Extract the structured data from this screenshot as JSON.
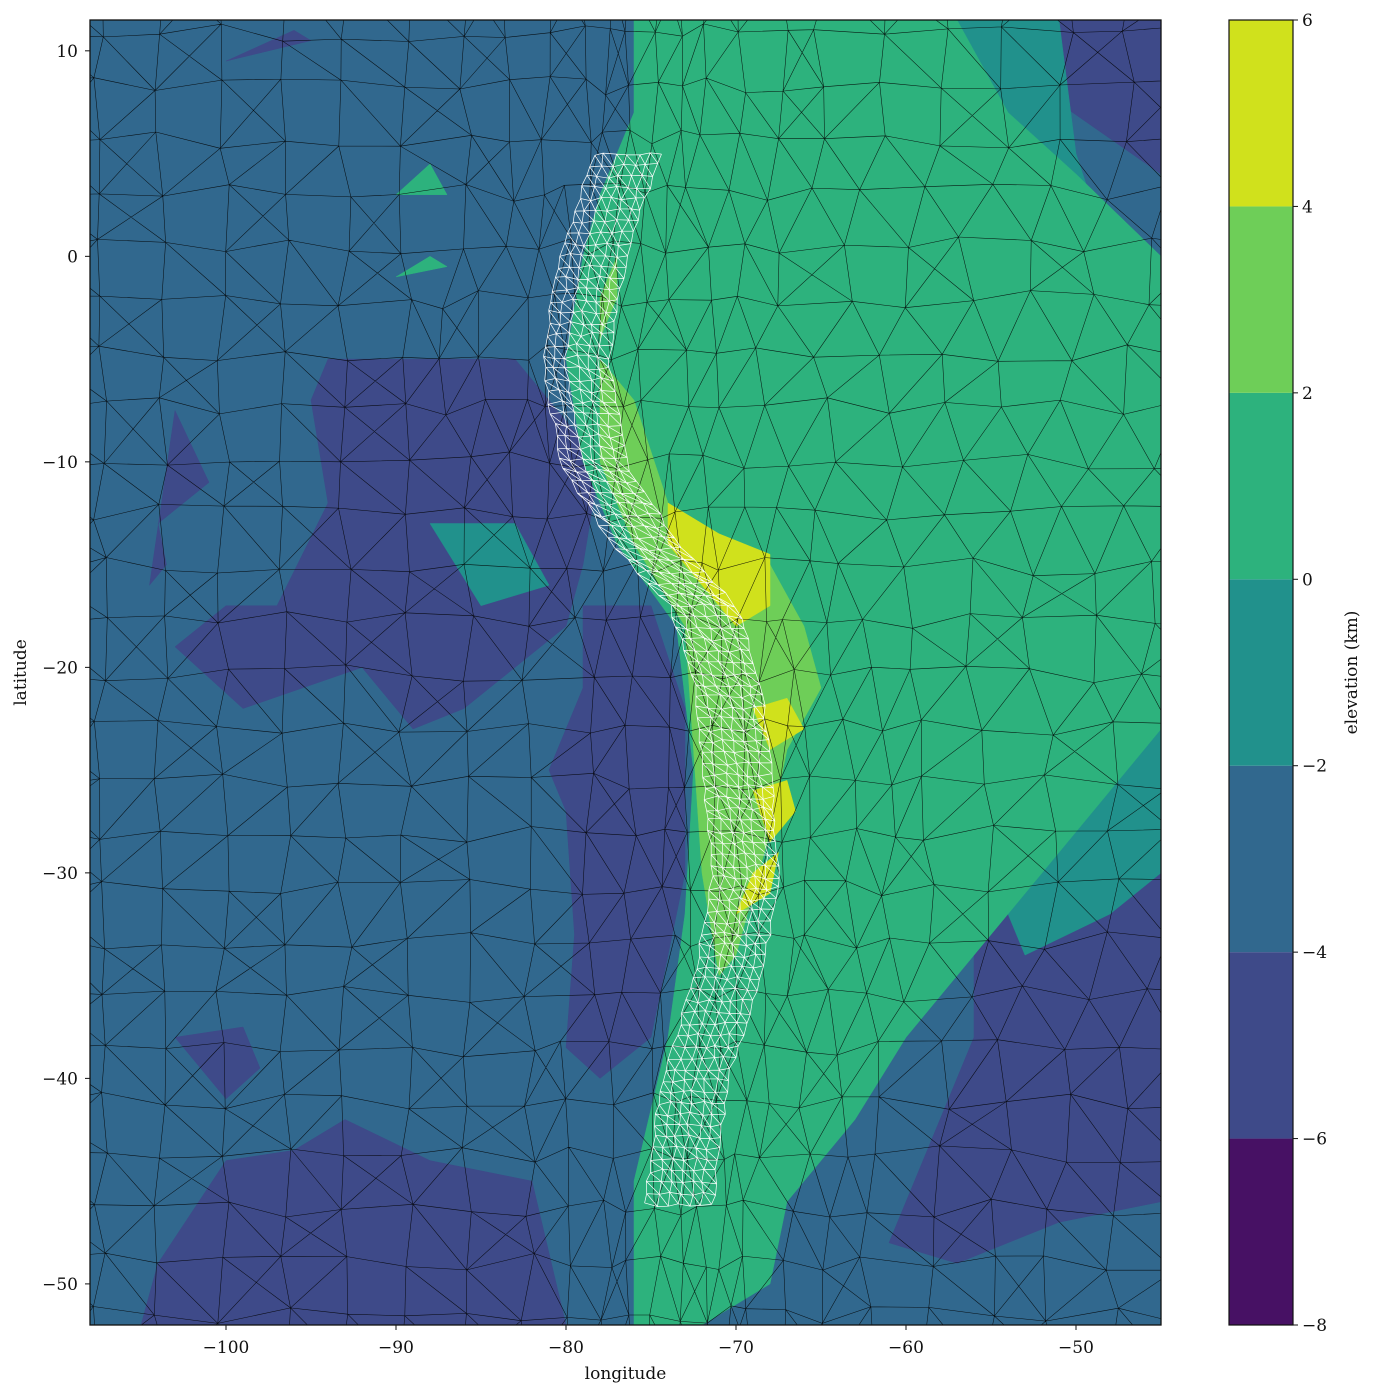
{
  "chart_data": {
    "type": "heatmap",
    "subtype": "filled-contour on triangular mesh",
    "title": "",
    "xlabel": "longitude",
    "ylabel": "latitude",
    "xlim": [
      -108,
      -45
    ],
    "ylim": [
      -52,
      11.5
    ],
    "xticks": [
      -100,
      -90,
      -80,
      -70,
      -60,
      -50
    ],
    "yticks": [
      10,
      0,
      -10,
      -20,
      -30,
      -40,
      -50
    ],
    "xtick_labels": [
      "−100",
      "−90",
      "−80",
      "−70",
      "−60",
      "−50"
    ],
    "ytick_labels": [
      "10",
      "0",
      "−10",
      "−20",
      "−30",
      "−40",
      "−50"
    ],
    "colorbar": {
      "label": "elevation (km)",
      "levels": [
        -8,
        -6,
        -4,
        -2,
        0,
        2,
        4,
        6
      ],
      "tick_labels": [
        "−8",
        "−6",
        "−4",
        "−2",
        "0",
        "2",
        "4",
        "6"
      ],
      "colors": [
        "#471164",
        "#3e4a89",
        "#31688e",
        "#21918c",
        "#2db27d",
        "#6ece58",
        "#d0e11c"
      ]
    },
    "regions": [
      {
        "level": "-4 to -2",
        "description": "background ocean"
      },
      {
        "level": "-6 to -4",
        "polygon": [
          [
            -94,
            -5
          ],
          [
            -83,
            -5
          ],
          [
            -78,
            -10
          ],
          [
            -79,
            -15
          ],
          [
            -80,
            -18
          ],
          [
            -86,
            -22
          ],
          [
            -89,
            -23
          ],
          [
            -92,
            -20
          ],
          [
            -99,
            -22
          ],
          [
            -103,
            -19
          ],
          [
            -100,
            -17
          ],
          [
            -97,
            -17
          ],
          [
            -94,
            -12
          ],
          [
            -95,
            -7
          ]
        ]
      },
      {
        "level": "-6 to -4",
        "polygon": [
          [
            -103,
            -7.5
          ],
          [
            -101,
            -11
          ],
          [
            -104,
            -13
          ],
          [
            -103.5,
            -15
          ],
          [
            -104.5,
            -16
          ]
        ]
      },
      {
        "level": "-6 to -4",
        "polygon": [
          [
            -79,
            -17
          ],
          [
            -75,
            -17
          ],
          [
            -73,
            -22
          ],
          [
            -73,
            -30
          ],
          [
            -75,
            -38
          ],
          [
            -78,
            -40
          ],
          [
            -80,
            -38.5
          ],
          [
            -79.5,
            -33
          ],
          [
            -80,
            -27
          ],
          [
            -81,
            -25
          ],
          [
            -79,
            -21
          ]
        ]
      },
      {
        "level": "-6 to -4",
        "polygon": [
          [
            -100,
            -44
          ],
          [
            -96,
            -43.5
          ],
          [
            -93,
            -42
          ],
          [
            -88,
            -44
          ],
          [
            -82,
            -45
          ],
          [
            -80,
            -52
          ],
          [
            -105,
            -52
          ],
          [
            -104,
            -49
          ]
        ]
      },
      {
        "level": "-6 to -4",
        "polygon": [
          [
            -103,
            -38
          ],
          [
            -99,
            -37.5
          ],
          [
            -98,
            -39.5
          ],
          [
            -100,
            -41
          ],
          [
            -101,
            -40
          ]
        ]
      },
      {
        "level": "-6 to -4",
        "polygon": [
          [
            -56,
            -30
          ],
          [
            -45,
            -23
          ],
          [
            -45,
            -46
          ],
          [
            -51,
            -47
          ],
          [
            -57,
            -49
          ],
          [
            -61,
            -48
          ],
          [
            -59,
            -44
          ],
          [
            -56,
            -38
          ]
        ]
      },
      {
        "level": "-6 to -4",
        "polygon": [
          [
            -58,
            11.5
          ],
          [
            -45,
            11.5
          ],
          [
            -45,
            4
          ]
        ]
      },
      {
        "level": "-6 to -4",
        "polygon": [
          [
            -100,
            9.5
          ],
          [
            -95,
            10.5
          ],
          [
            -96,
            11
          ]
        ]
      },
      {
        "level": "-2 to 0",
        "polygon": [
          [
            -88,
            -13
          ],
          [
            -83,
            -13
          ],
          [
            -81,
            -16
          ],
          [
            -85,
            -17
          ]
        ]
      },
      {
        "level": "-2 to 0",
        "polygon": [
          [
            -56,
            -28
          ],
          [
            -50,
            -24
          ],
          [
            -45,
            -23
          ],
          [
            -45,
            -30
          ],
          [
            -48,
            -32
          ],
          [
            -53,
            -34
          ]
        ]
      },
      {
        "level": "-2 to 0",
        "polygon": [
          [
            -58,
            11.5
          ],
          [
            -51,
            11.5
          ],
          [
            -50,
            5
          ],
          [
            -48,
            0
          ],
          [
            -52,
            -3
          ],
          [
            -56,
            -1
          ],
          [
            -58,
            3
          ],
          [
            -60,
            8
          ]
        ]
      },
      {
        "level": "0 to 2",
        "polygon": [
          [
            -76,
            11.5
          ],
          [
            -57,
            11.5
          ],
          [
            -54,
            7
          ],
          [
            -50,
            4
          ],
          [
            -45,
            0
          ],
          [
            -45,
            -23
          ],
          [
            -50,
            -28
          ],
          [
            -56,
            -34
          ],
          [
            -60,
            -38
          ],
          [
            -63,
            -42
          ],
          [
            -67,
            -46
          ],
          [
            -68,
            -50
          ],
          [
            -72,
            -52
          ],
          [
            -76,
            -52
          ],
          [
            -76,
            -45
          ],
          [
            -74,
            -38
          ],
          [
            -73,
            -32
          ],
          [
            -72.5,
            -25
          ],
          [
            -73.5,
            -18
          ],
          [
            -77,
            -14
          ],
          [
            -79,
            -10
          ],
          [
            -80,
            -5
          ],
          [
            -79,
            0
          ],
          [
            -78,
            3
          ],
          [
            -76,
            7
          ]
        ]
      },
      {
        "level": "0 to 2",
        "polygon": [
          [
            -90,
            3
          ],
          [
            -88,
            4.5
          ],
          [
            -87,
            3
          ]
        ]
      },
      {
        "level": "0 to 2",
        "polygon": [
          [
            -90,
            -1
          ],
          [
            -88,
            0
          ],
          [
            -87,
            -0.5
          ]
        ]
      },
      {
        "level": "2 to 4",
        "polygon": [
          [
            -78,
            -5
          ],
          [
            -76,
            -7
          ],
          [
            -74,
            -12
          ],
          [
            -71,
            -14
          ],
          [
            -68,
            -15
          ],
          [
            -66,
            -18
          ],
          [
            -65,
            -21
          ],
          [
            -67,
            -24
          ],
          [
            -68,
            -28
          ],
          [
            -69,
            -31
          ],
          [
            -70,
            -34
          ],
          [
            -71,
            -35
          ],
          [
            -72,
            -30
          ],
          [
            -72.5,
            -24
          ],
          [
            -73,
            -18
          ],
          [
            -76,
            -14
          ],
          [
            -78,
            -10
          ]
        ]
      },
      {
        "level": "2 to 4",
        "polygon": [
          [
            -78,
            -2
          ],
          [
            -77,
            0
          ],
          [
            -77,
            -2
          ],
          [
            -78,
            -4
          ]
        ]
      },
      {
        "level": "4 to 6",
        "polygon": [
          [
            -74,
            -12
          ],
          [
            -71,
            -13.5
          ],
          [
            -68,
            -14.5
          ],
          [
            -68,
            -17
          ],
          [
            -70,
            -18
          ],
          [
            -72,
            -16
          ],
          [
            -74,
            -14
          ]
        ]
      },
      {
        "level": "4 to 6",
        "polygon": [
          [
            -69,
            -22
          ],
          [
            -67,
            -21.5
          ],
          [
            -66,
            -23
          ],
          [
            -68,
            -24
          ]
        ]
      },
      {
        "level": "4 to 6",
        "polygon": [
          [
            -69,
            -26
          ],
          [
            -67,
            -25.5
          ],
          [
            -66.5,
            -27
          ],
          [
            -68,
            -28.5
          ]
        ]
      },
      {
        "level": "4 to 6",
        "polygon": [
          [
            -69,
            -30
          ],
          [
            -67.5,
            -29
          ],
          [
            -68,
            -31
          ],
          [
            -70,
            -32
          ]
        ]
      }
    ],
    "mesh": [
      {
        "name": "global mesh",
        "color": "#000000",
        "resolution": "coarse, refined toward trench"
      },
      {
        "name": "refined trench mesh",
        "color": "#ffffff",
        "extent_lat": [
          5,
          -46.5
        ],
        "centerline": [
          [
            -77,
            5
          ],
          [
            -79,
            0
          ],
          [
            -80,
            -5
          ],
          [
            -79,
            -10
          ],
          [
            -76,
            -14
          ],
          [
            -72.5,
            -17
          ],
          [
            -71,
            -21
          ],
          [
            -70.5,
            -25
          ],
          [
            -70,
            -30
          ],
          [
            -71,
            -35
          ],
          [
            -73,
            -40
          ],
          [
            -74,
            -46.5
          ]
        ]
      }
    ]
  }
}
